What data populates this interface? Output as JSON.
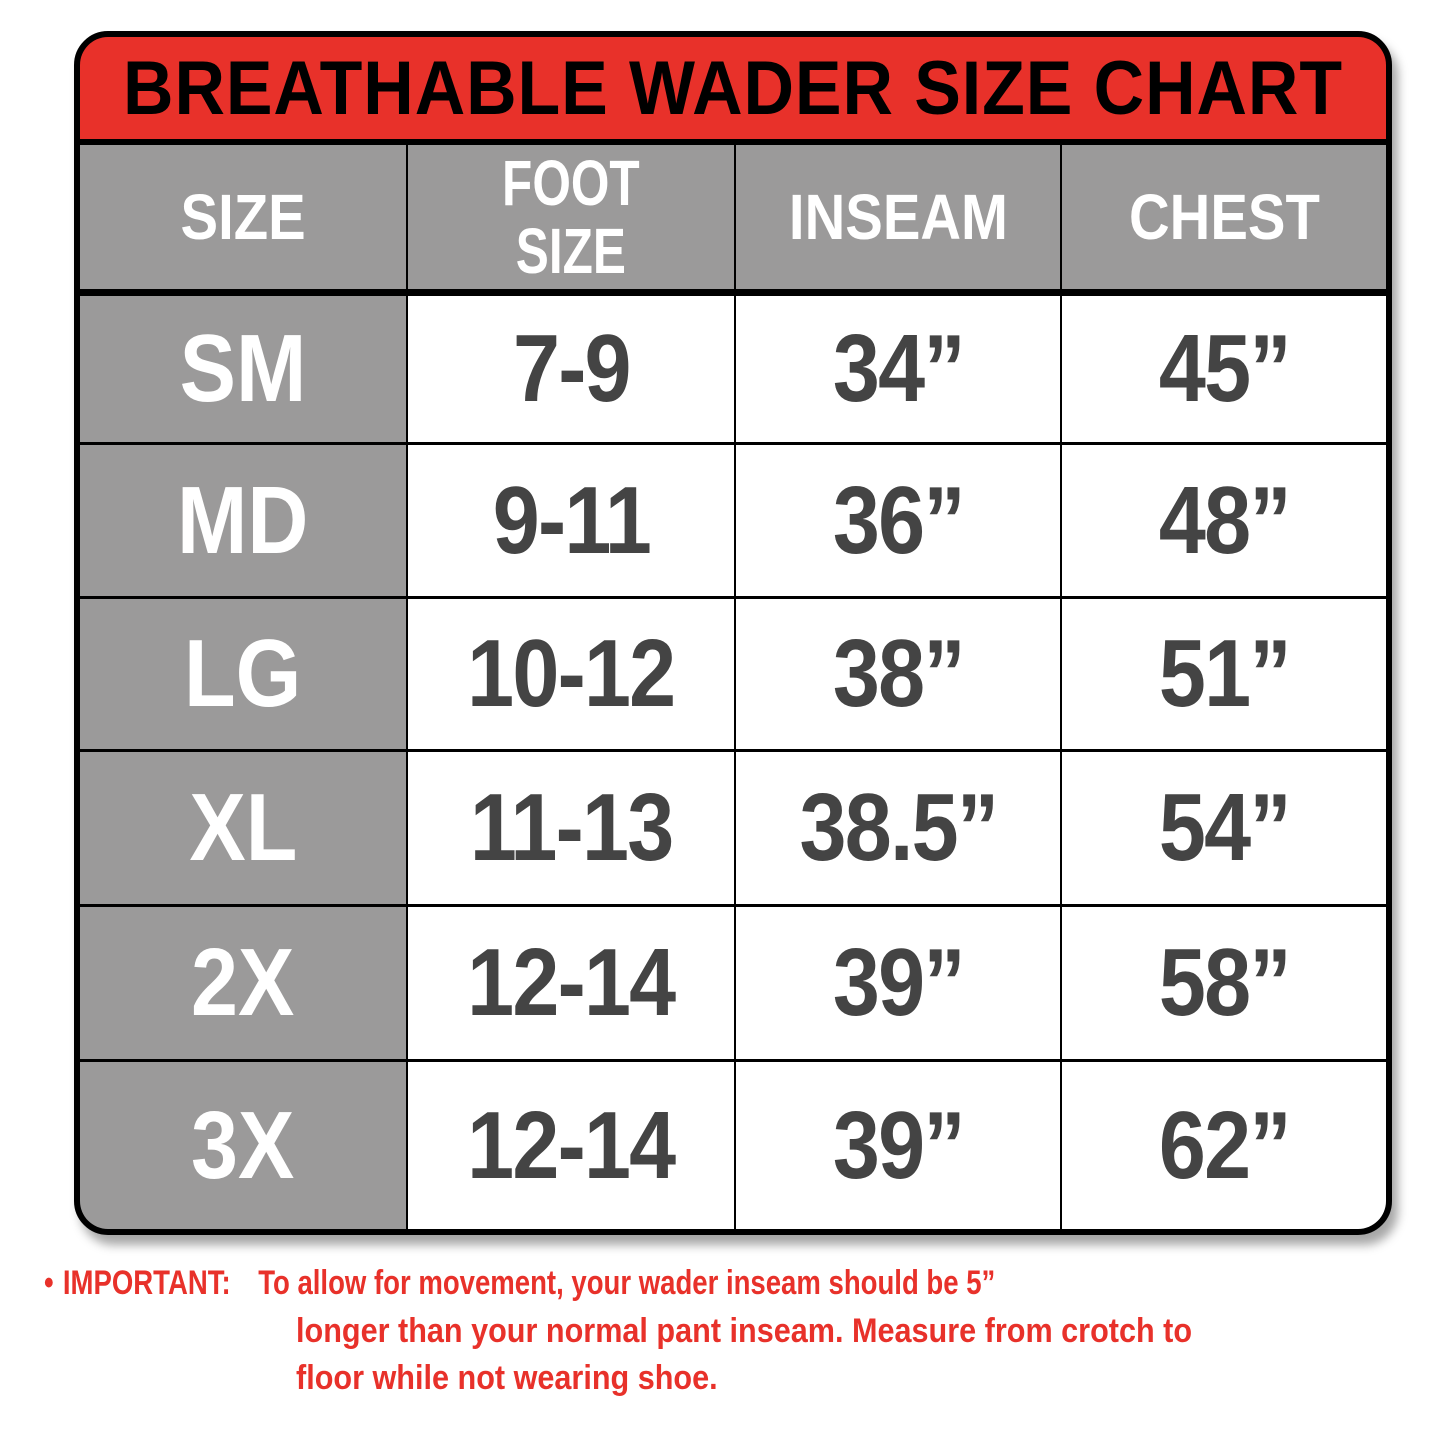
{
  "title": "BREATHABLE WADER SIZE CHART",
  "headers": [
    "SIZE",
    "FOOT\nSIZE",
    "INSEAM",
    "CHEST"
  ],
  "header_lines": {
    "foot": [
      "FOOT",
      "SIZE"
    ]
  },
  "rows": [
    [
      "SM",
      "7-9",
      "34”",
      "45”"
    ],
    [
      "MD",
      "9-11",
      "36”",
      "48”"
    ],
    [
      "LG",
      "10-12",
      "38”",
      "51”"
    ],
    [
      "XL",
      "11-13",
      "38.5”",
      "54”"
    ],
    [
      "2X",
      "12-14",
      "39”",
      "58”"
    ],
    [
      "3X",
      "12-14",
      "39”",
      "62”"
    ]
  ],
  "note": {
    "bullet": "•",
    "label": "IMPORTANT:",
    "lines": [
      "To allow for movement, your wader inseam should be 5”",
      "longer than your normal pant inseam. Measure from crotch to",
      "floor while not wearing shoe."
    ]
  },
  "colors": {
    "title_bg": "#e8312a",
    "header_bg": "#9b9a9a",
    "value_text": "#444444",
    "note_text": "#e8312a"
  }
}
